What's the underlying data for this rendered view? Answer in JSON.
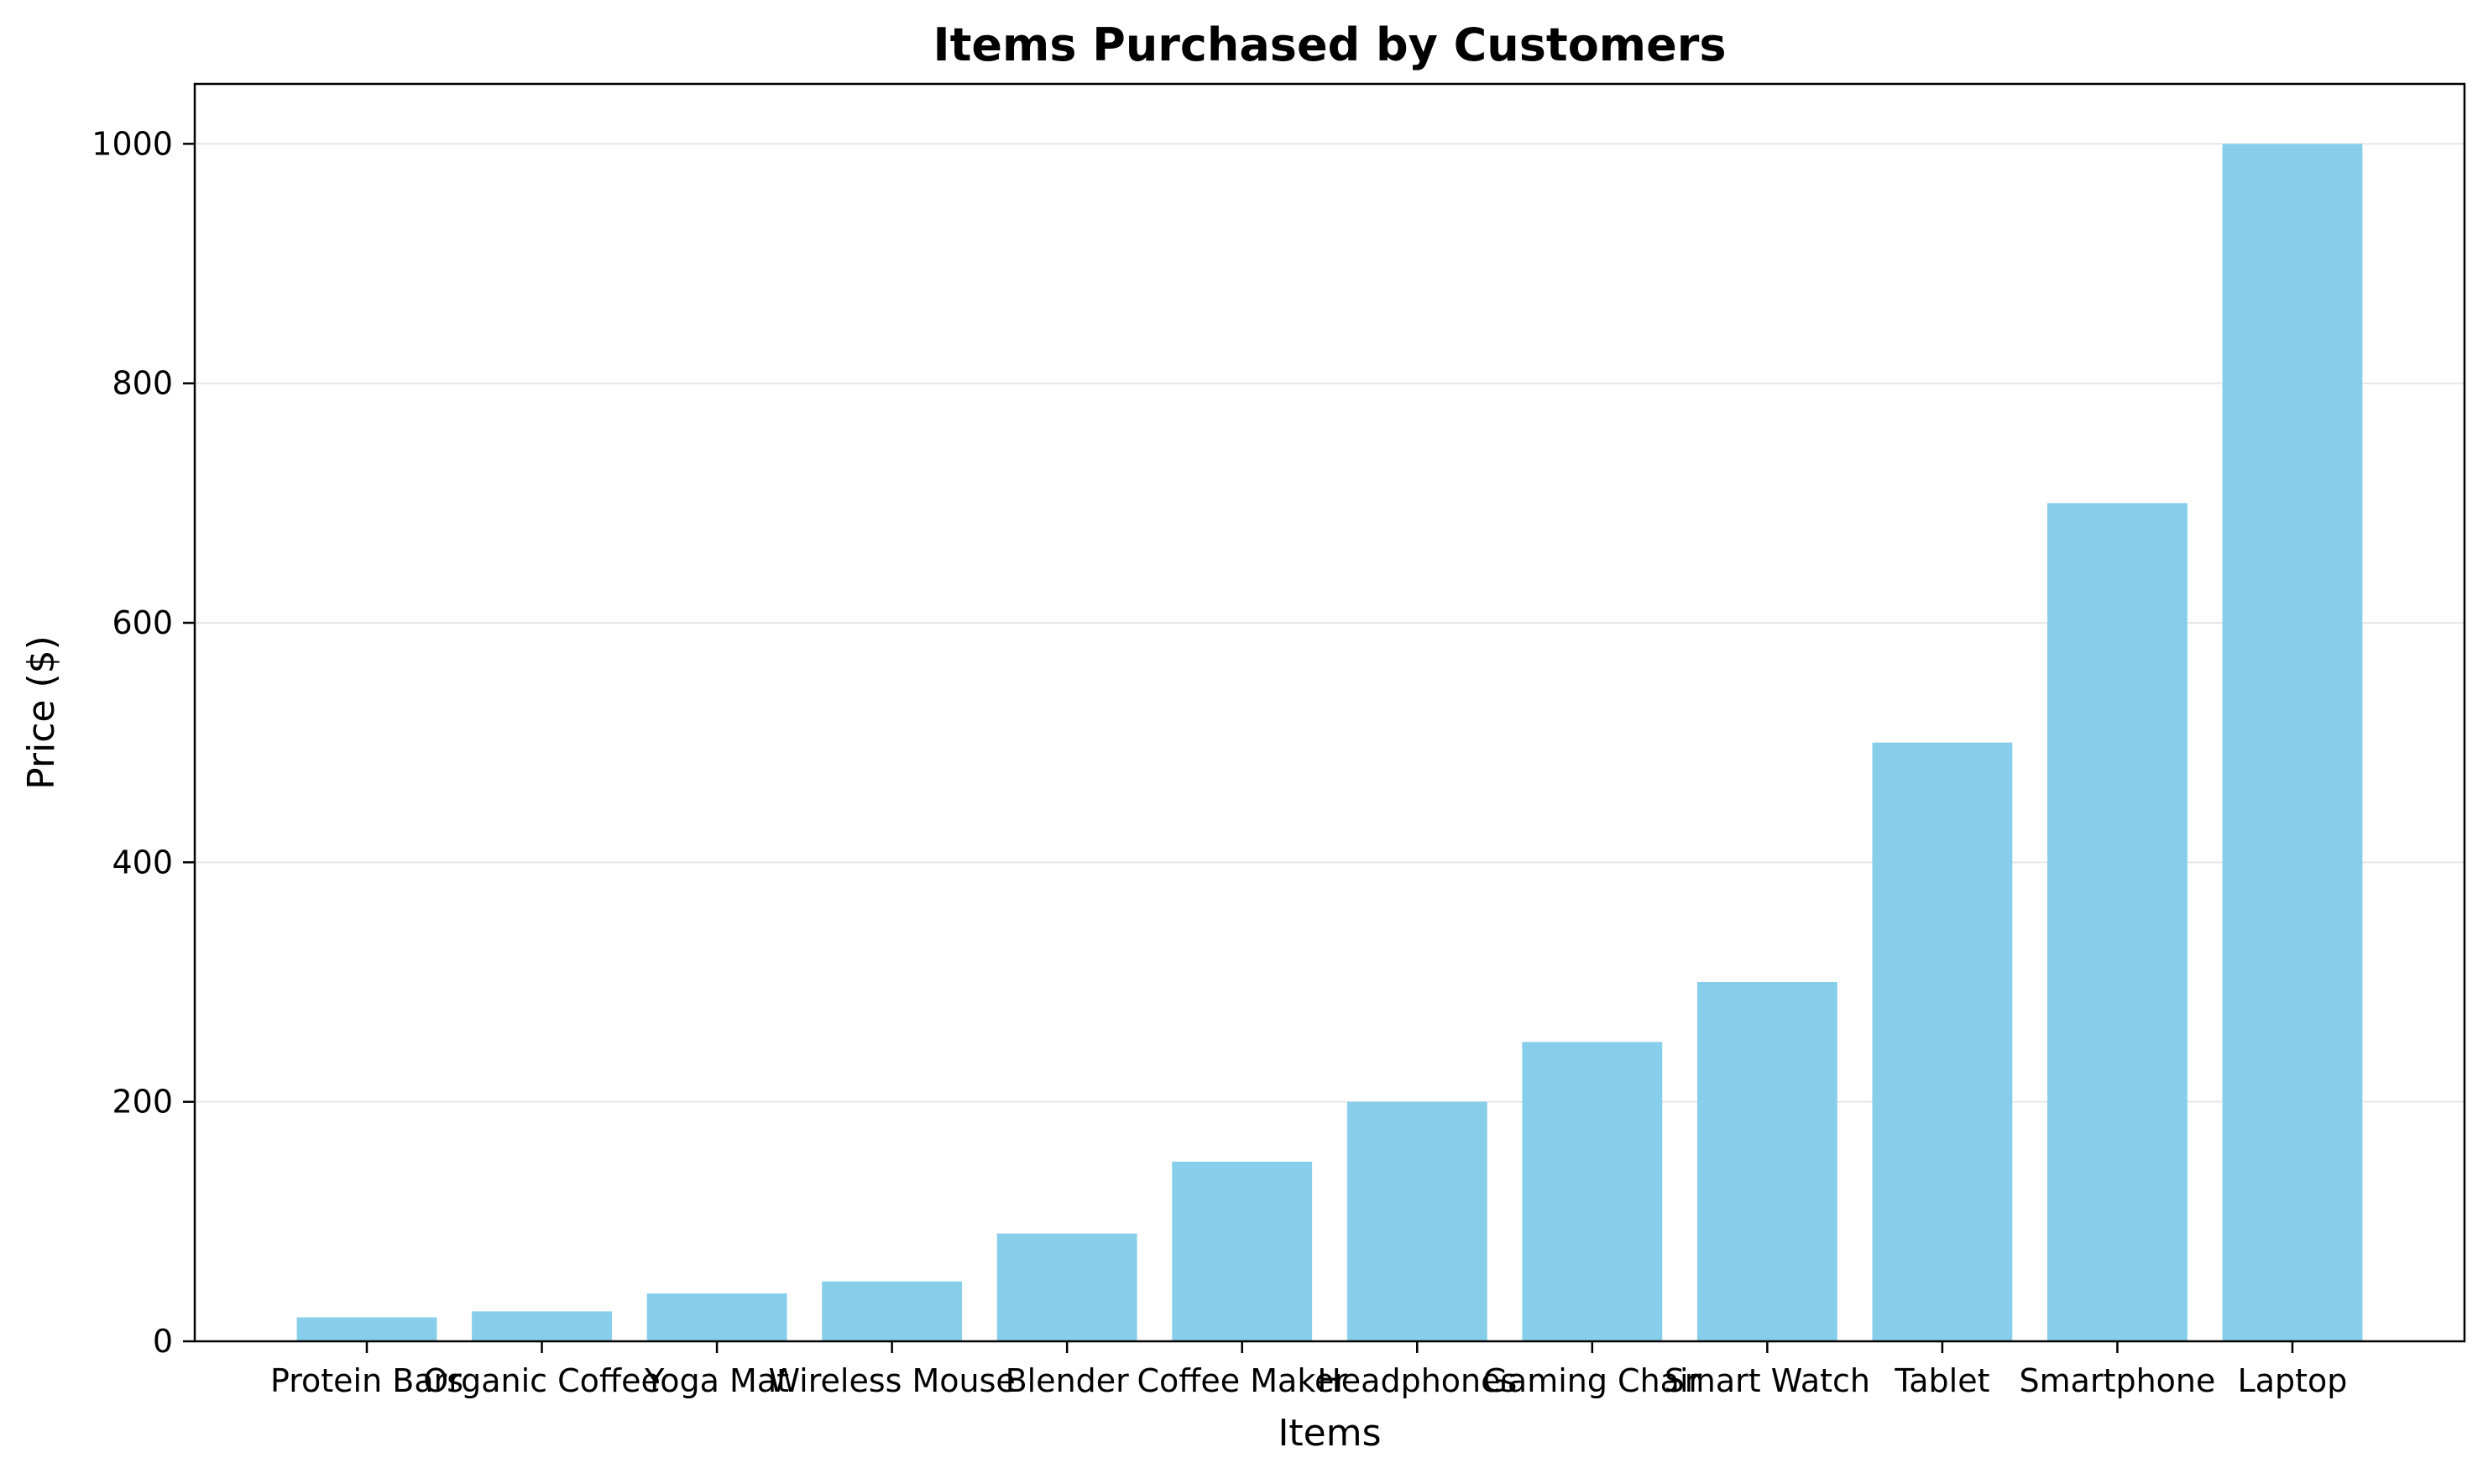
{
  "chart_data": {
    "type": "bar",
    "title": "Items Purchased by Customers",
    "xlabel": "Items",
    "ylabel": "Price ($)",
    "categories": [
      "Protein Bars",
      "Organic Coffee",
      "Yoga Mat",
      "Wireless Mouse",
      "Blender",
      "Coffee Maker",
      "Headphones",
      "Gaming Chair",
      "Smart Watch",
      "Tablet",
      "Smartphone",
      "Laptop"
    ],
    "values": [
      20,
      25,
      40,
      50,
      90,
      150,
      200,
      250,
      300,
      500,
      700,
      1000
    ],
    "ylim": [
      0,
      1050
    ],
    "yticks": [
      0,
      200,
      400,
      600,
      800,
      1000
    ],
    "grid": "y",
    "legend": "none",
    "colors": {
      "bar": "#87CEEB",
      "grid": "#e6e6e6",
      "axis": "#000000"
    }
  }
}
